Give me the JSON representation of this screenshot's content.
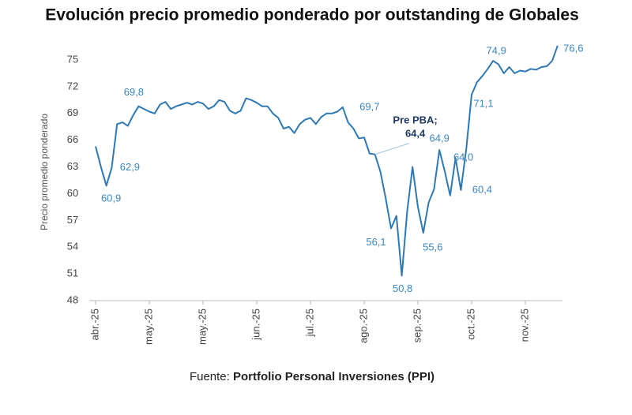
{
  "chart_data": {
    "type": "line",
    "title": "Evolución precio promedio ponderado por outstanding de Globales",
    "y_label": "Precio promedio ponderado",
    "source": {
      "prefix": "Fuente:",
      "name": "Portfolio Personal Inversiones (PPI)"
    },
    "categories": [
      "abr.-25",
      null,
      null,
      null,
      null,
      null,
      null,
      null,
      null,
      null,
      "may.-25",
      null,
      null,
      null,
      null,
      null,
      null,
      null,
      null,
      null,
      "may.-25",
      null,
      null,
      null,
      null,
      null,
      null,
      null,
      null,
      null,
      "jun.-25",
      null,
      null,
      null,
      null,
      null,
      null,
      null,
      null,
      null,
      "jul.-25",
      null,
      null,
      null,
      null,
      null,
      null,
      null,
      null,
      null,
      "ago.-25",
      null,
      null,
      null,
      null,
      null,
      null,
      null,
      null,
      null,
      "sep.-25",
      null,
      null,
      null,
      null,
      null,
      null,
      null,
      null,
      null,
      "oct.-25",
      null,
      null,
      null,
      null,
      null,
      null,
      null,
      null,
      null,
      "nov.-25",
      null,
      null,
      null,
      null,
      null,
      null
    ],
    "values": [
      65.3,
      63.0,
      60.9,
      62.9,
      67.8,
      68.0,
      67.6,
      68.8,
      69.8,
      69.5,
      69.2,
      69.0,
      70.0,
      70.3,
      69.5,
      69.8,
      70.0,
      70.2,
      70.0,
      70.3,
      70.1,
      69.5,
      69.8,
      70.5,
      70.3,
      69.3,
      69.0,
      69.3,
      70.7,
      70.5,
      70.2,
      69.8,
      69.8,
      69.0,
      68.5,
      67.3,
      67.5,
      66.8,
      67.8,
      68.3,
      68.5,
      67.8,
      68.6,
      69.0,
      69.0,
      69.2,
      69.7,
      68.0,
      67.3,
      66.2,
      66.3,
      64.5,
      64.4,
      62.5,
      59.5,
      56.1,
      57.5,
      50.8,
      58.0,
      63.0,
      58.5,
      55.6,
      59.0,
      60.5,
      64.9,
      62.5,
      59.8,
      64.0,
      60.4,
      65.0,
      71.1,
      72.5,
      73.2,
      74.0,
      74.9,
      74.5,
      73.5,
      74.2,
      73.5,
      73.8,
      73.7,
      74.0,
      73.9,
      74.2,
      74.3,
      74.9,
      76.6
    ],
    "value_labels": [
      null,
      null,
      "60,9",
      "62,9",
      null,
      null,
      null,
      null,
      "69,8",
      null,
      null,
      null,
      null,
      null,
      null,
      null,
      null,
      null,
      null,
      null,
      null,
      null,
      null,
      null,
      null,
      null,
      null,
      null,
      null,
      null,
      null,
      null,
      null,
      null,
      null,
      null,
      null,
      null,
      null,
      null,
      null,
      null,
      null,
      null,
      null,
      null,
      "69,7",
      null,
      null,
      null,
      null,
      null,
      "Pre PBA;\n64,4",
      null,
      null,
      "56,1",
      null,
      "50,8",
      null,
      null,
      null,
      "55,6",
      null,
      null,
      "64,9",
      null,
      null,
      "64,0",
      "60,4",
      null,
      "71,1",
      null,
      null,
      null,
      "74,9",
      null,
      null,
      null,
      null,
      null,
      null,
      null,
      null,
      null,
      null,
      null,
      "76,6"
    ],
    "color": "#2e78b5",
    "ylim": [
      48,
      77
    ],
    "yticks": [
      48,
      51,
      54,
      57,
      60,
      63,
      66,
      69,
      72,
      75
    ],
    "grid": false
  }
}
